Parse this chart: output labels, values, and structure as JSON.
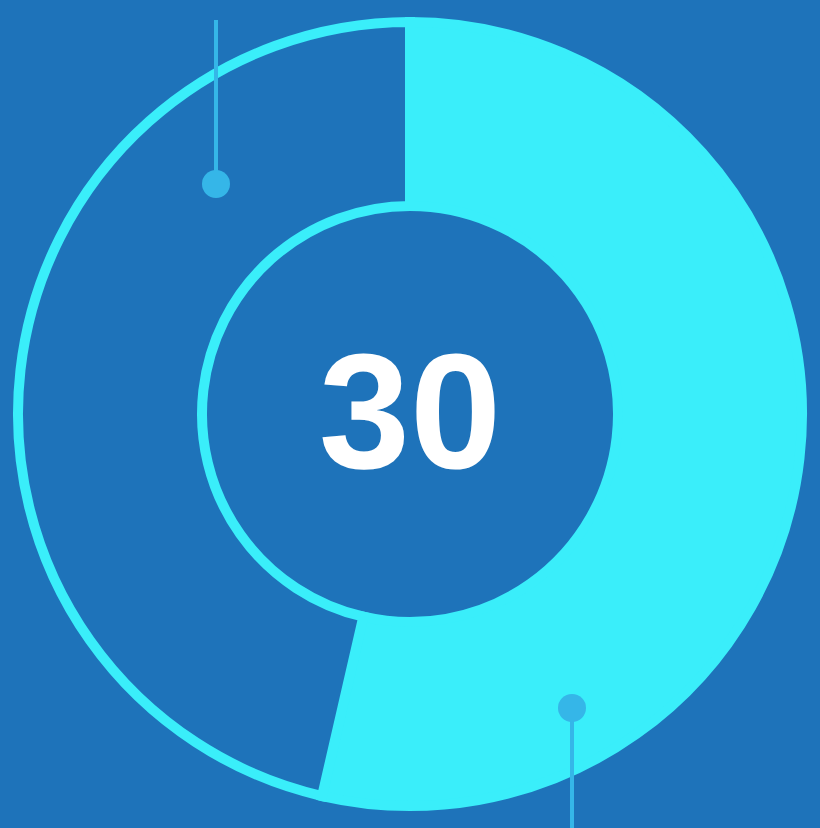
{
  "chart_data": {
    "type": "donut",
    "categories": [
      null,
      null
    ],
    "values": [
      53.6,
      46.4
    ],
    "colors": [
      "#3aeefa",
      "#1e73ba"
    ],
    "annotations": [
      "30"
    ]
  }
}
